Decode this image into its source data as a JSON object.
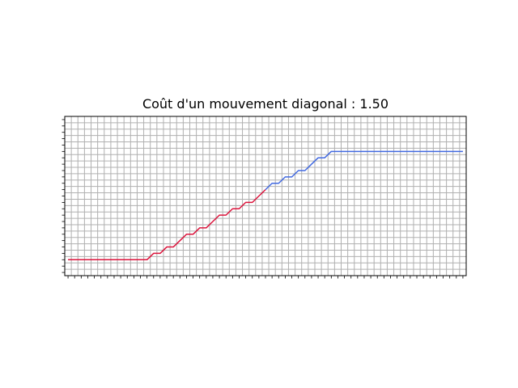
{
  "chart_data": {
    "type": "line",
    "title": "Coût d'un mouvement diagonal : 1.50",
    "xlabel": "",
    "ylabel": "",
    "xlim": [
      -0.5,
      60.5
    ],
    "ylim": [
      -0.5,
      24.5
    ],
    "grid": true,
    "x_tick_labels_shown": false,
    "y_tick_labels_shown": false,
    "series": [
      {
        "color": "#dc143c",
        "points": [
          [
            0,
            2
          ],
          [
            12,
            2
          ],
          [
            13,
            3
          ],
          [
            14,
            3
          ],
          [
            15,
            4
          ],
          [
            16,
            4
          ],
          [
            17,
            5
          ],
          [
            18,
            6
          ],
          [
            19,
            6
          ],
          [
            20,
            7
          ],
          [
            21,
            7
          ],
          [
            22,
            8
          ],
          [
            23,
            9
          ],
          [
            24,
            9
          ],
          [
            25,
            10
          ],
          [
            26,
            10
          ],
          [
            27,
            11
          ],
          [
            28,
            11
          ],
          [
            29,
            12
          ],
          [
            30,
            13
          ]
        ]
      },
      {
        "color": "#4169e1",
        "points": [
          [
            30,
            13
          ],
          [
            31,
            14
          ],
          [
            32,
            14
          ],
          [
            33,
            15
          ],
          [
            34,
            15
          ],
          [
            35,
            16
          ],
          [
            36,
            16
          ],
          [
            37,
            17
          ],
          [
            38,
            18
          ],
          [
            39,
            18
          ],
          [
            40,
            19
          ],
          [
            60,
            19
          ]
        ]
      }
    ]
  }
}
